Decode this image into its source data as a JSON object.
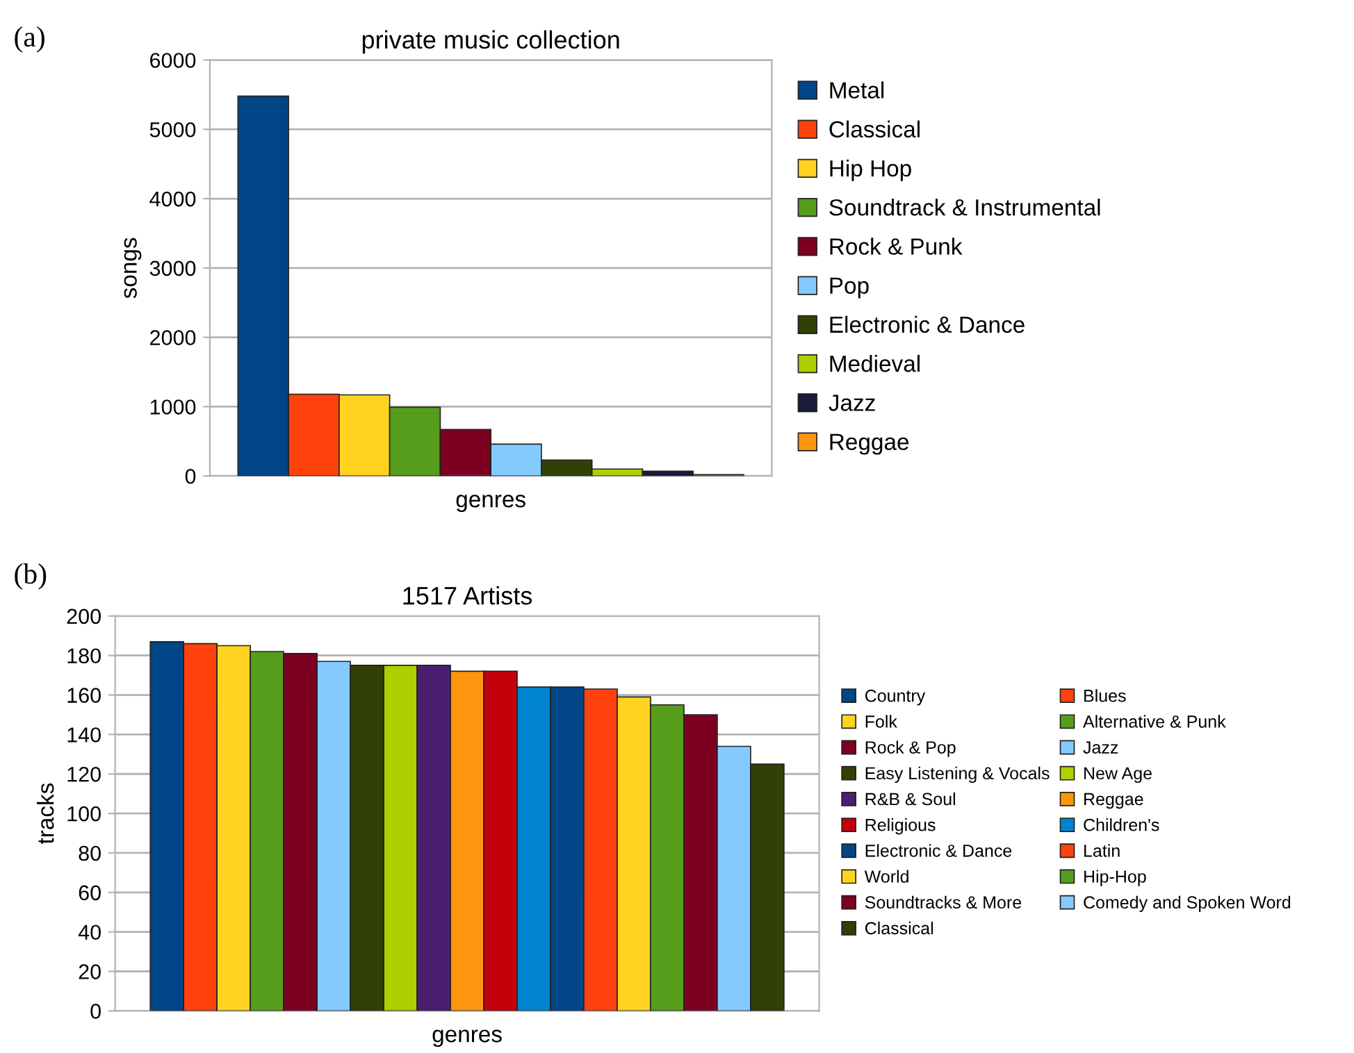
{
  "chart_data": [
    {
      "type": "bar",
      "title": "private music collection",
      "xlabel": "genres",
      "ylabel": "songs",
      "annotations": [
        "(a)"
      ],
      "categories": [
        null
      ],
      "ylim": [
        0,
        6000
      ],
      "yticks": [
        0,
        1000,
        2000,
        3000,
        4000,
        5000,
        6000
      ],
      "grid": "y",
      "legend": "right",
      "series": [
        {
          "name": "Metal",
          "color": "#004586",
          "values": [
            5480
          ]
        },
        {
          "name": "Classical",
          "color": "#ff420e",
          "values": [
            1180
          ]
        },
        {
          "name": "Hip Hop",
          "color": "#ffd320",
          "values": [
            1170
          ]
        },
        {
          "name": "Soundtrack & Instrumental",
          "color": "#579d1c",
          "values": [
            990
          ]
        },
        {
          "name": "Rock & Punk",
          "color": "#7e0021",
          "values": [
            670
          ]
        },
        {
          "name": "Pop",
          "color": "#83caff",
          "values": [
            460
          ]
        },
        {
          "name": "Electronic & Dance",
          "color": "#314004",
          "values": [
            230
          ]
        },
        {
          "name": "Medieval",
          "color": "#aecf00",
          "values": [
            100
          ]
        },
        {
          "name": "Jazz",
          "color": "#1a1a3a",
          "values": [
            70
          ]
        },
        {
          "name": "Reggae",
          "color": "#ff950e",
          "values": [
            20
          ]
        }
      ]
    },
    {
      "type": "bar",
      "title": "1517 Artists",
      "xlabel": "genres",
      "ylabel": "tracks",
      "annotations": [
        "(b)"
      ],
      "categories": [
        null
      ],
      "ylim": [
        0,
        200
      ],
      "yticks": [
        0,
        20,
        40,
        60,
        80,
        100,
        120,
        140,
        160,
        180,
        200
      ],
      "grid": "y",
      "legend": "right",
      "series": [
        {
          "name": "Country",
          "color": "#004586",
          "values": [
            187
          ]
        },
        {
          "name": "Blues",
          "color": "#ff420e",
          "values": [
            186
          ]
        },
        {
          "name": "Folk",
          "color": "#ffd320",
          "values": [
            185
          ]
        },
        {
          "name": "Alternative & Punk",
          "color": "#579d1c",
          "values": [
            182
          ]
        },
        {
          "name": "Rock & Pop",
          "color": "#7e0021",
          "values": [
            181
          ]
        },
        {
          "name": "Jazz",
          "color": "#83caff",
          "values": [
            177
          ]
        },
        {
          "name": "Easy Listening & Vocals",
          "color": "#314004",
          "values": [
            175
          ]
        },
        {
          "name": "New Age",
          "color": "#aecf00",
          "values": [
            175
          ]
        },
        {
          "name": "R&B & Soul",
          "color": "#4b1f6f",
          "values": [
            175
          ]
        },
        {
          "name": "Reggae",
          "color": "#ff950e",
          "values": [
            172
          ]
        },
        {
          "name": "Religious",
          "color": "#c5000b",
          "values": [
            172
          ]
        },
        {
          "name": "Children's",
          "color": "#0084d1",
          "values": [
            164
          ]
        },
        {
          "name": "Electronic & Dance",
          "color": "#004586",
          "values": [
            164
          ]
        },
        {
          "name": "Latin",
          "color": "#ff420e",
          "values": [
            163
          ]
        },
        {
          "name": "World",
          "color": "#ffd320",
          "values": [
            159
          ]
        },
        {
          "name": "Hip-Hop",
          "color": "#579d1c",
          "values": [
            155
          ]
        },
        {
          "name": "Soundtracks & More",
          "color": "#7e0021",
          "values": [
            150
          ]
        },
        {
          "name": "Comedy and Spoken Word",
          "color": "#83caff",
          "values": [
            134
          ]
        },
        {
          "name": "Classical",
          "color": "#314004",
          "values": [
            125
          ]
        }
      ]
    }
  ]
}
